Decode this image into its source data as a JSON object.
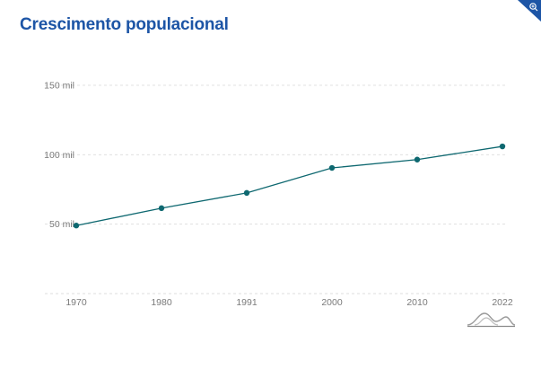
{
  "chart_data": {
    "type": "line",
    "title": "Crescimento populacional",
    "categories": [
      "1970",
      "1980",
      "1991",
      "2000",
      "2010",
      "2022"
    ],
    "series": [
      {
        "values": [
          49000,
          61500,
          72500,
          90500,
          96500,
          106000
        ]
      }
    ],
    "y_ticks": [
      "50 mil",
      "100 mil",
      "150 mil"
    ],
    "y_tick_values": [
      50000,
      100000,
      150000
    ],
    "ylim": [
      0,
      150000
    ],
    "grid": true,
    "line_color": "#0e6870",
    "title_color": "#1d55a6"
  },
  "icons": {
    "corner": "zoom-in-icon",
    "logo": "mountain-logo-icon"
  }
}
